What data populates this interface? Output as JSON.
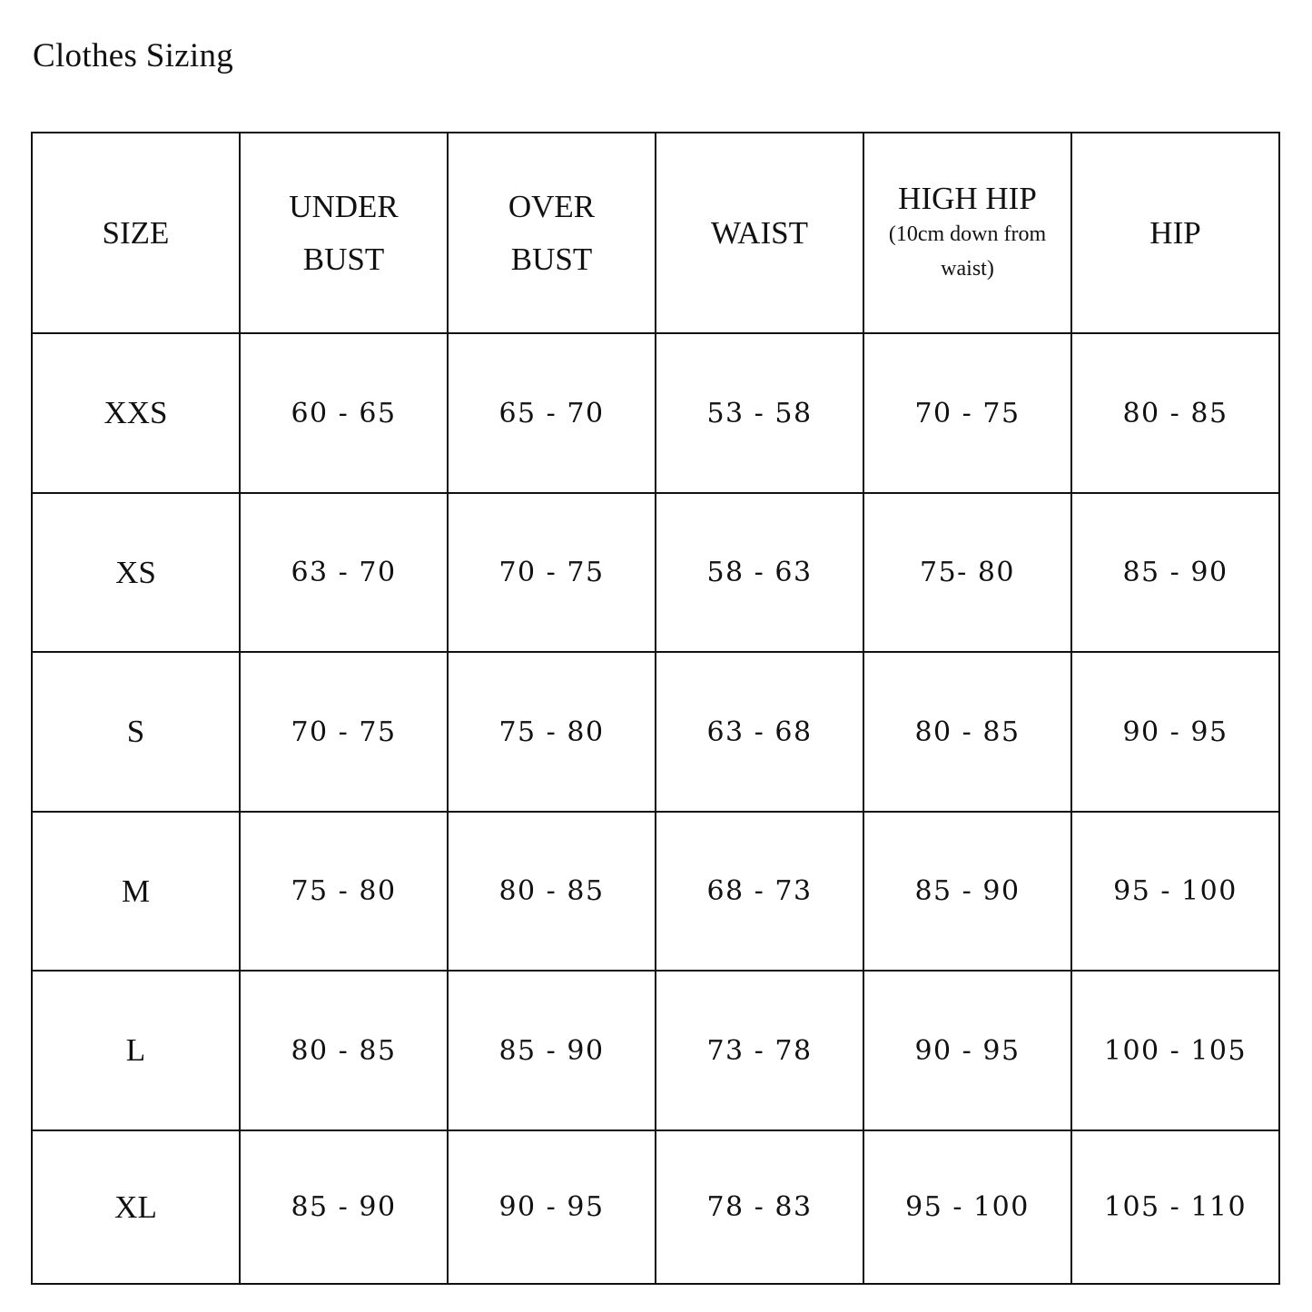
{
  "title": "Clothes Sizing",
  "table": {
    "headers": [
      {
        "main": "SIZE",
        "sub": ""
      },
      {
        "main": "UNDER BUST",
        "sub": ""
      },
      {
        "main": "OVER BUST",
        "sub": ""
      },
      {
        "main": "WAIST",
        "sub": ""
      },
      {
        "main": "HIGH HIP",
        "sub": "(10cm down from waist)"
      },
      {
        "main": "HIP",
        "sub": ""
      }
    ],
    "rows": [
      [
        "XXS",
        "60 - 65",
        "65 - 70",
        "53 - 58",
        "70 - 75",
        "80 - 85"
      ],
      [
        "XS",
        "63 - 70",
        "70 - 75",
        "58 - 63",
        "75- 80",
        "85 - 90"
      ],
      [
        "S",
        "70 - 75",
        "75 - 80",
        "63 - 68",
        "80 - 85",
        "90 - 95"
      ],
      [
        "M",
        "75 - 80",
        "80 - 85",
        "68 - 73",
        "85 - 90",
        "95 - 100"
      ],
      [
        "L",
        "80 - 85",
        "85 - 90",
        "73 - 78",
        "90 - 95",
        "100 - 105"
      ],
      [
        "XL",
        "85 - 90",
        "90 - 95",
        "78 - 83",
        "95 - 100",
        "105 - 110"
      ]
    ]
  }
}
